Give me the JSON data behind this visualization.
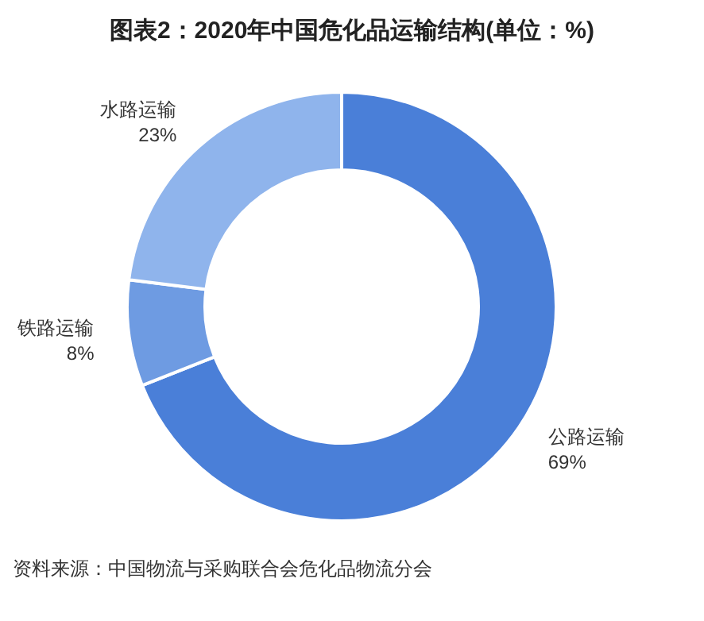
{
  "chart_data": {
    "type": "donut",
    "title": "图表2：2020年中国危化品运输结构(单位：%)",
    "categories": [
      "公路运输",
      "铁路运输",
      "水路运输"
    ],
    "values": [
      69,
      8,
      23
    ],
    "colors": [
      "#4a7fd8",
      "#6e9be2",
      "#8fb4ec"
    ],
    "value_labels": [
      "69%",
      "8%",
      "23%"
    ],
    "annotations": [
      "资料来源：中国物流与采购联合会危化品物流分会"
    ]
  }
}
